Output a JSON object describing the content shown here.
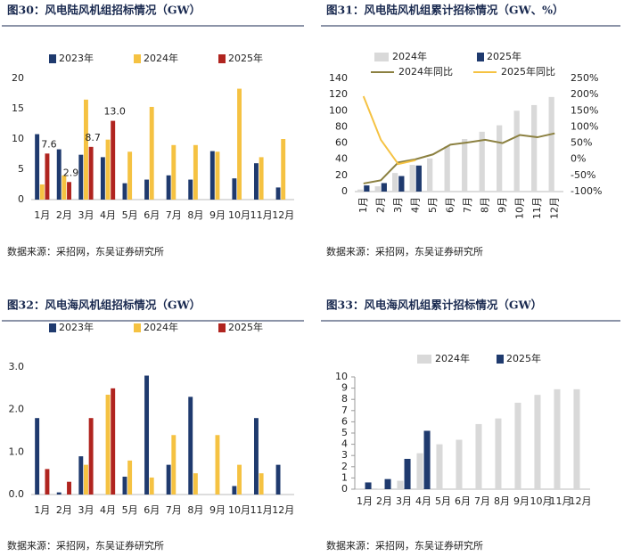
{
  "chart_data": [
    {
      "type": "bar",
      "title": "图30：风电陆风机组招标情况（GW）",
      "source": "数据来源：采招网，东吴证券研究所",
      "categories": [
        "1月",
        "2月",
        "3月",
        "4月",
        "5月",
        "6月",
        "7月",
        "8月",
        "9月",
        "10月",
        "11月",
        "12月"
      ],
      "ylim": [
        0,
        20
      ],
      "yticks": [
        0,
        5,
        10,
        15,
        20
      ],
      "series": [
        {
          "name": "2023年",
          "color": "#1f3a6e",
          "values": [
            10.8,
            8.3,
            7.4,
            7.0,
            2.7,
            3.3,
            4.0,
            3.3,
            8.0,
            3.5,
            6.0,
            2.0
          ]
        },
        {
          "name": "2024年",
          "color": "#f5c242",
          "values": [
            2.5,
            4.0,
            16.5,
            9.9,
            7.9,
            15.3,
            9.0,
            9.0,
            7.9,
            18.3,
            7.0,
            10.0
          ]
        },
        {
          "name": "2025年",
          "color": "#b0241f",
          "values": [
            7.6,
            2.9,
            8.7,
            13.0,
            null,
            null,
            null,
            null,
            null,
            null,
            null,
            null
          ],
          "value_labels": [
            "7.6",
            "2.9",
            "8.7",
            "13.0",
            null,
            null,
            null,
            null,
            null,
            null,
            null,
            null
          ]
        }
      ]
    },
    {
      "type": "combo",
      "title": "图31：风电陆风机组累计招标情况（GW、%）",
      "source": "数据来源：采招网，东吴证券研究所",
      "categories": [
        "1月",
        "2月",
        "3月",
        "4月",
        "5月",
        "6月",
        "7月",
        "8月",
        "9月",
        "10月",
        "11月",
        "12月"
      ],
      "ylim": [
        0,
        140
      ],
      "yticks": [
        0,
        20,
        40,
        60,
        80,
        100,
        120,
        140
      ],
      "y2lim": [
        -100,
        250
      ],
      "y2ticks": [
        {
          "value": -100,
          "label": "-100%"
        },
        {
          "value": -50,
          "label": "-50%"
        },
        {
          "value": 0,
          "label": "0%"
        },
        {
          "value": 50,
          "label": "50%"
        },
        {
          "value": 100,
          "label": "100%"
        },
        {
          "value": 150,
          "label": "150%"
        },
        {
          "value": 200,
          "label": "200%"
        },
        {
          "value": 250,
          "label": "250%"
        }
      ],
      "series": [
        {
          "name": "2024年",
          "color": "#d9d9d9",
          "values": [
            2.5,
            6.5,
            23,
            33,
            41,
            56,
            65,
            74,
            82,
            100,
            107,
            117
          ]
        },
        {
          "name": "2025年",
          "color": "#1f3a6e",
          "values": [
            7.6,
            10.5,
            19.2,
            32.2,
            null,
            null,
            null,
            null,
            null,
            null,
            null,
            null
          ]
        },
        {
          "name": "2024年同比",
          "color": "#8b8040",
          "kind": "line",
          "axis": "y2",
          "values": [
            -75,
            -65,
            -10,
            0,
            15,
            45,
            52,
            60,
            50,
            75,
            68,
            80
          ]
        },
        {
          "name": "2025年同比",
          "color": "#f5c242",
          "kind": "line",
          "axis": "y2",
          "values": [
            195,
            60,
            -15,
            -3,
            null,
            null,
            null,
            null,
            null,
            null,
            null,
            null
          ]
        }
      ]
    },
    {
      "type": "bar",
      "title": "图32：风电海风机组招标情况（GW）",
      "source": "数据来源：采招网，东吴证券研究所",
      "categories": [
        "1月",
        "2月",
        "3月",
        "4月",
        "5月",
        "6月",
        "7月",
        "8月",
        "9月",
        "10月",
        "11月",
        "12月"
      ],
      "ylim": [
        0,
        3
      ],
      "yticks": [
        {
          "value": 0,
          "label": "0.0"
        },
        {
          "value": 1,
          "label": "1.0"
        },
        {
          "value": 2,
          "label": "2.0"
        },
        {
          "value": 3,
          "label": "3.0"
        }
      ],
      "series": [
        {
          "name": "2023年",
          "color": "#1f3a6e",
          "values": [
            1.8,
            0.05,
            0.9,
            0,
            0.42,
            2.8,
            0.7,
            2.3,
            0,
            0.2,
            1.8,
            0.7
          ]
        },
        {
          "name": "2024年",
          "color": "#f5c242",
          "values": [
            0,
            0,
            0.7,
            2.35,
            0.8,
            0.4,
            1.4,
            0.5,
            1.4,
            0.7,
            0.5,
            0
          ]
        },
        {
          "name": "2025年",
          "color": "#b0241f",
          "values": [
            0.6,
            0.3,
            1.8,
            2.5,
            null,
            null,
            null,
            null,
            null,
            null,
            null,
            null
          ]
        }
      ]
    },
    {
      "type": "bar",
      "title": "图33：风电海风机组累计招标情况（GW）",
      "source": "数据来源：采招网，东吴证券研究所",
      "categories": [
        "1月",
        "2月",
        "3月",
        "4月",
        "5月",
        "6月",
        "7月",
        "8月",
        "9月",
        "10月",
        "11月",
        "12月"
      ],
      "ylim": [
        0,
        10
      ],
      "yticks": [
        0,
        1,
        2,
        3,
        4,
        5,
        6,
        7,
        8,
        9,
        10
      ],
      "series": [
        {
          "name": "2024年",
          "color": "#d9d9d9",
          "values": [
            0,
            0.05,
            0.75,
            3.2,
            4.0,
            4.4,
            5.8,
            6.3,
            7.7,
            8.4,
            8.9,
            8.9
          ]
        },
        {
          "name": "2025年",
          "color": "#1f3a6e",
          "values": [
            0.6,
            0.9,
            2.7,
            5.2,
            null,
            null,
            null,
            null,
            null,
            null,
            null,
            null
          ]
        }
      ]
    }
  ]
}
